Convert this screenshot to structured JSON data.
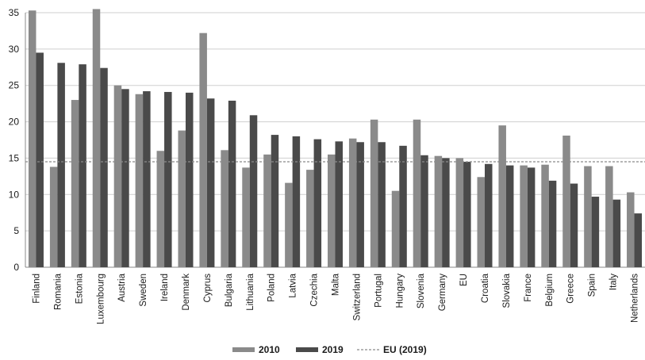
{
  "chart_data": {
    "type": "bar",
    "categories": [
      "Finland",
      "Romania",
      "Estonia",
      "Luxembourg",
      "Austria",
      "Sweden",
      "Ireland",
      "Denmark",
      "Cyprus",
      "Bulgaria",
      "Lithuania",
      "Poland",
      "Latvia",
      "Czechia",
      "Malta",
      "Switzerland",
      "Portugal",
      "Hungary",
      "Slovenia",
      "Germany",
      "EU",
      "Croatia",
      "Slovakia",
      "France",
      "Belgium",
      "Greece",
      "Spain",
      "Italy",
      "Netherlands"
    ],
    "series": [
      {
        "name": "2010",
        "color": "#8a8a8a",
        "values": [
          35.3,
          13.8,
          23.0,
          35.5,
          25.0,
          23.8,
          16.0,
          18.8,
          32.2,
          16.1,
          13.7,
          15.5,
          11.6,
          13.4,
          15.5,
          17.7,
          20.3,
          10.5,
          20.3,
          15.3,
          15.0,
          12.4,
          19.5,
          14.0,
          14.1,
          18.1,
          13.9,
          13.9,
          10.3
        ]
      },
      {
        "name": "2019",
        "color": "#4a4a4a",
        "values": [
          29.5,
          28.1,
          27.9,
          27.4,
          24.5,
          24.2,
          24.1,
          24.0,
          23.2,
          22.9,
          20.9,
          18.2,
          18.0,
          17.6,
          17.3,
          17.2,
          17.2,
          16.7,
          15.4,
          15.0,
          14.5,
          14.2,
          14.0,
          13.7,
          11.9,
          11.5,
          9.7,
          9.3,
          7.4
        ]
      }
    ],
    "reference_line": {
      "name": "EU (2019)",
      "value": 14.5,
      "style": "dashed",
      "color": "#8a8a8a"
    },
    "yticks": [
      "0",
      "5",
      "10",
      "15",
      "20",
      "25",
      "30",
      "35"
    ],
    "ylim": [
      0,
      35
    ],
    "grid": true,
    "legend_position": "bottom-center",
    "title": "",
    "xlabel": "",
    "ylabel": ""
  }
}
